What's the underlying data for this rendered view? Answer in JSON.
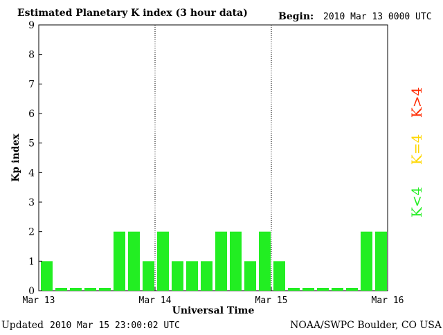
{
  "header": {
    "title": "Estimated Planetary K index (3 hour data)",
    "begin_label": "Begin:",
    "begin_value": "2010 Mar 13 0000 UTC"
  },
  "footer": {
    "updated_label": "Updated",
    "updated_value": "2010 Mar 15 23:00:02 UTC",
    "source": "NOAA/SWPC Boulder, CO USA"
  },
  "legend": {
    "high": {
      "label": "K>4",
      "color": "#ff2a00"
    },
    "equal": {
      "label": "K=4",
      "color": "#ffd700"
    },
    "low": {
      "label": "K<4",
      "color": "#22ee22"
    }
  },
  "chart_data": {
    "type": "bar",
    "title": "Estimated Planetary K index (3 hour data)",
    "xlabel": "Universal Time",
    "ylabel": "Kp index",
    "ylim": [
      0,
      9
    ],
    "yticks": [
      "0",
      "1",
      "2",
      "3",
      "4",
      "5",
      "6",
      "7",
      "8",
      "9"
    ],
    "xticks": [
      "Mar 13",
      "Mar 14",
      "Mar 15",
      "Mar 16"
    ],
    "day_separators": [
      "Mar 14",
      "Mar 15"
    ],
    "interval_hours": 3,
    "start": "2010 Mar 13 0000 UTC",
    "values": [
      1,
      0,
      0,
      0,
      0,
      2,
      2,
      1,
      2,
      1,
      1,
      1,
      2,
      2,
      1,
      2,
      1,
      0,
      0,
      0,
      0,
      0,
      2,
      2
    ],
    "bar_color": "#22ee22",
    "grid": false
  }
}
